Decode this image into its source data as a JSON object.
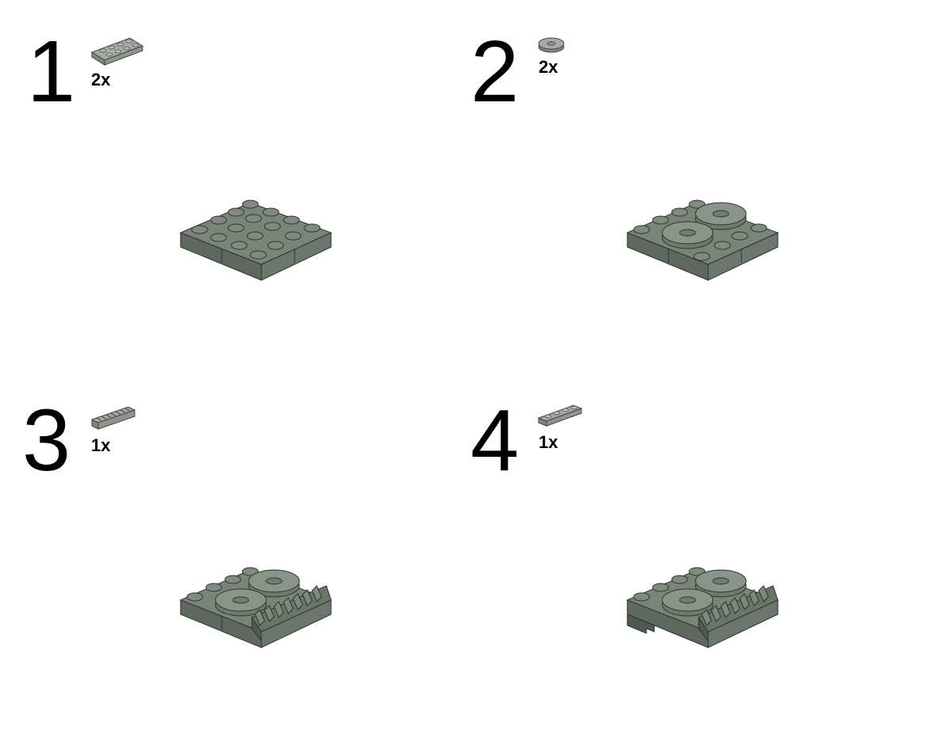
{
  "steps": [
    {
      "number": "1",
      "part_qty": "2x",
      "part_icon": "plate-2x4-icon"
    },
    {
      "number": "2",
      "part_qty": "2x",
      "part_icon": "round-tile-2x2-icon"
    },
    {
      "number": "3",
      "part_qty": "1x",
      "part_icon": "gear-rack-1x4-icon"
    },
    {
      "number": "4",
      "part_qty": "1x",
      "part_icon": "plate-1x4-icon"
    }
  ],
  "colors": {
    "brick_top": "#7a857a",
    "brick_left": "#5e685e",
    "brick_right": "#6c766c",
    "stud": "#808b80",
    "outline": "#2e342e",
    "part_light": "#a5aca5"
  }
}
